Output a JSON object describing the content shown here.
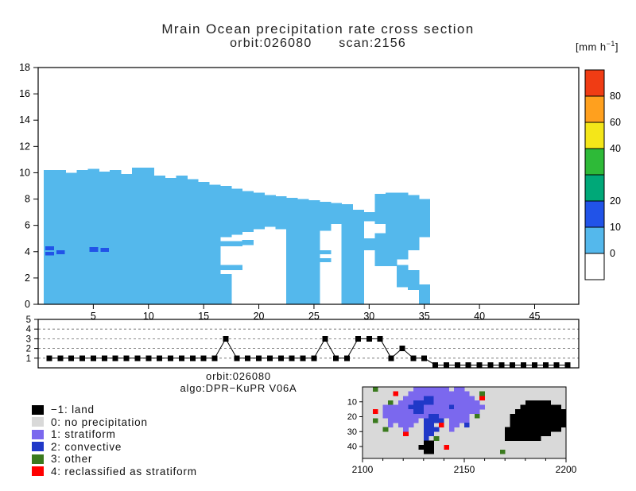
{
  "title": {
    "line1": "Mrain Ocean precipitation rate cross section",
    "line2": "orbit:026080      scan:2156"
  },
  "units": {
    "prefix": "[mm h",
    "exponent": "−1",
    "suffix": "]"
  },
  "meta": {
    "orbit": "orbit:026080",
    "algo": "algo:DPR−KuPR V06A"
  },
  "colors": {
    "light_rain": "#54b8ec",
    "heavy_rain": "#2153e8",
    "no_precip_gray": "#d9d9d9",
    "stratiform_purple": "#7b68ee",
    "convective_blue": "#2038c8",
    "other_green": "#3a7a1e",
    "reclassified_red": "#ff0000",
    "land_black": "#000000",
    "frame": "#000000"
  },
  "legend": {
    "items": [
      {
        "key": "land",
        "label": "−1: land",
        "color": "#000000"
      },
      {
        "key": "no-precip",
        "label": "0: no precipitation",
        "color": "#d9d9d9"
      },
      {
        "key": "stratiform",
        "label": "1: stratiform",
        "color": "#7b68ee"
      },
      {
        "key": "convective",
        "label": "2: convective",
        "color": "#2038c8"
      },
      {
        "key": "other",
        "label": "3: other",
        "color": "#3a7a1e"
      },
      {
        "key": "reclassified",
        "label": "4: reclassified as stratiform",
        "color": "#ff0000"
      }
    ]
  },
  "chart_data": [
    {
      "type": "heatmap",
      "name": "precipitation-rate-cross-section",
      "title": "Mrain Ocean precipitation rate cross section",
      "subtitle": "orbit:026080  scan:2156",
      "units": "mm h-1",
      "xlim": [
        0,
        49
      ],
      "ylim": [
        0,
        18
      ],
      "xticks": [
        5,
        10,
        15,
        20,
        25,
        30,
        35,
        40,
        45
      ],
      "yticks": [
        0,
        2,
        4,
        6,
        8,
        10,
        12,
        14,
        16,
        18
      ],
      "grid": false,
      "colorbar": {
        "colors_bottom_to_top": [
          "#ffffff",
          "#54b8ec",
          "#2153e8",
          "#00a878",
          "#2eba38",
          "#f4e619",
          "#ffa01e",
          "#f03c14"
        ],
        "boundaries": [
          0,
          10,
          20,
          30,
          40,
          60,
          80
        ],
        "labeled": [
          0,
          10,
          20,
          40,
          60,
          80
        ]
      },
      "value_bins": {
        "light": "0-10 mm/h",
        "heavy": "10-20 mm/h"
      },
      "columns": [
        {
          "x": 1,
          "spans": [
            [
              0,
              10.2
            ]
          ],
          "heavy": [
            [
              3.7,
              4.0
            ],
            [
              4.1,
              4.4
            ]
          ]
        },
        {
          "x": 2,
          "spans": [
            [
              0,
              10.2
            ]
          ],
          "heavy": [
            [
              3.8,
              4.1
            ]
          ]
        },
        {
          "x": 3,
          "spans": [
            [
              0,
              10.0
            ]
          ]
        },
        {
          "x": 4,
          "spans": [
            [
              0,
              10.2
            ]
          ]
        },
        {
          "x": 5,
          "spans": [
            [
              0,
              10.3
            ]
          ],
          "heavy": [
            [
              4.0,
              4.35
            ]
          ]
        },
        {
          "x": 6,
          "spans": [
            [
              0,
              10.1
            ]
          ],
          "heavy": [
            [
              4.0,
              4.3
            ]
          ]
        },
        {
          "x": 7,
          "spans": [
            [
              0,
              10.2
            ]
          ]
        },
        {
          "x": 8,
          "spans": [
            [
              0,
              9.9
            ]
          ]
        },
        {
          "x": 9,
          "spans": [
            [
              0,
              10.4
            ]
          ]
        },
        {
          "x": 10,
          "spans": [
            [
              0,
              10.4
            ]
          ]
        },
        {
          "x": 11,
          "spans": [
            [
              0,
              9.8
            ]
          ]
        },
        {
          "x": 12,
          "spans": [
            [
              0,
              9.6
            ]
          ]
        },
        {
          "x": 13,
          "spans": [
            [
              0,
              9.8
            ]
          ]
        },
        {
          "x": 14,
          "spans": [
            [
              0,
              9.5
            ]
          ]
        },
        {
          "x": 15,
          "spans": [
            [
              0,
              9.3
            ]
          ]
        },
        {
          "x": 16,
          "spans": [
            [
              0,
              9.1
            ]
          ]
        },
        {
          "x": 17,
          "spans": [
            [
              0,
              2.3
            ],
            [
              2.6,
              3.0
            ],
            [
              4.4,
              4.8
            ],
            [
              5.1,
              9.0
            ]
          ]
        },
        {
          "x": 18,
          "spans": [
            [
              2.6,
              3.0
            ],
            [
              4.4,
              4.8
            ],
            [
              5.3,
              8.8
            ]
          ]
        },
        {
          "x": 19,
          "spans": [
            [
              4.5,
              4.9
            ],
            [
              5.5,
              8.6
            ]
          ]
        },
        {
          "x": 20,
          "spans": [
            [
              5.7,
              8.5
            ]
          ]
        },
        {
          "x": 21,
          "spans": [
            [
              5.9,
              8.3
            ]
          ]
        },
        {
          "x": 22,
          "spans": [
            [
              5.7,
              8.2
            ]
          ]
        },
        {
          "x": 23,
          "spans": [
            [
              0,
              8.1
            ]
          ]
        },
        {
          "x": 24,
          "spans": [
            [
              0,
              8.0
            ]
          ]
        },
        {
          "x": 25,
          "spans": [
            [
              0,
              7.9
            ]
          ]
        },
        {
          "x": 26,
          "spans": [
            [
              3.2,
              3.5
            ],
            [
              3.8,
              4.1
            ],
            [
              5.6,
              7.8
            ]
          ]
        },
        {
          "x": 27,
          "spans": [
            [
              6.1,
              7.7
            ]
          ]
        },
        {
          "x": 28,
          "spans": [
            [
              0,
              7.6
            ]
          ]
        },
        {
          "x": 29,
          "spans": [
            [
              0,
              7.2
            ]
          ]
        },
        {
          "x": 30,
          "spans": [
            [
              4.1,
              5.0
            ],
            [
              6.3,
              7.0
            ]
          ]
        },
        {
          "x": 31,
          "spans": [
            [
              2.9,
              5.4
            ],
            [
              6.1,
              8.4
            ]
          ]
        },
        {
          "x": 32,
          "spans": [
            [
              2.9,
              8.5
            ]
          ]
        },
        {
          "x": 33,
          "spans": [
            [
              1.3,
              3.0
            ],
            [
              3.4,
              8.5
            ]
          ]
        },
        {
          "x": 34,
          "spans": [
            [
              1.1,
              2.6
            ],
            [
              4.1,
              8.3
            ]
          ]
        },
        {
          "x": 35,
          "spans": [
            [
              0,
              1.5
            ],
            [
              5.1,
              8.0
            ]
          ]
        }
      ]
    },
    {
      "type": "line",
      "name": "rain-type-per-scan-position",
      "marker": "square",
      "xlim": [
        0,
        49
      ],
      "ylim": [
        0,
        5
      ],
      "yticks": [
        1,
        2,
        3,
        4,
        5
      ],
      "x_start": 1,
      "values": [
        1,
        1,
        1,
        1,
        1,
        1,
        1,
        1,
        1,
        1,
        1,
        1,
        1,
        1,
        1,
        1,
        3,
        1,
        1,
        1,
        1,
        1,
        1,
        1,
        1,
        3,
        1,
        1,
        3,
        3,
        3,
        1,
        2,
        1,
        1,
        0,
        0,
        0,
        0,
        0,
        0,
        0,
        0,
        0,
        0,
        0,
        0,
        0
      ]
    },
    {
      "type": "heatmap",
      "name": "rain-type-map",
      "xlim": [
        2100,
        2200
      ],
      "xticks": [
        2100,
        2150,
        2200
      ],
      "ylim": [
        0,
        48
      ],
      "yticks": [
        10,
        20,
        30,
        40
      ],
      "palette": {
        ".": "#d9d9d9",
        "S": "#7b68ee",
        "C": "#2038c8",
        "O": "#3a7a1e",
        "R": "#ff0000",
        "L": "#000000"
      },
      "grid": [
        "..O.......SSSSSSS.SS....................",
        "......R..SSSSSSSSSSSS..O................",
        "........SSSSCCSSSSSSSS.R................",
        ".....O.SSSCCCCSSSSSSSSS.........LLLLL...",
        "....SSSSSCCCSSSSSCSSSSSS.......LLLLLLLL.",
        "..R.SSSSSSCCSSSSSSSSSSS.......LLLLLLLLLL",
        "....SSSSSSSSSCCSSSSSS.O......LLLLLLLLLLL",
        "..O..SSSSSS.CCCC.SSSS........LLLLLLLLLLL",
        ".....S.SSS..CC.R.SS.C........LLLLLLLLLLL",
        "....O...S...CCC..S..........LLLLLLLLLLL.",
        "........R...CC..............LLLLLLLLL...",
        "............C.O.............LLLLLLL.....",
        "............LL..........................",
        "...........LLL..R.......................",
        "............LL.............O............",
        "........................................"
      ]
    }
  ]
}
